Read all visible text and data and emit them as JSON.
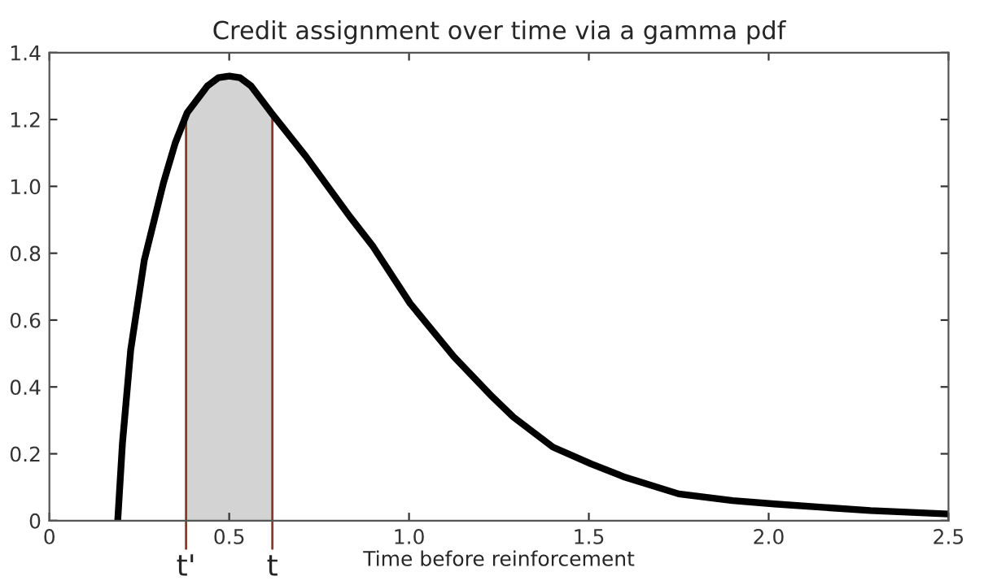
{
  "chart_data": {
    "type": "line",
    "title": "Credit assignment over time via a gamma pdf",
    "xlabel": "Time before reinforcement",
    "series": [
      {
        "color": "#000000",
        "x": [
          0.19,
          0.203,
          0.226,
          0.264,
          0.317,
          0.35,
          0.383,
          0.439,
          0.47,
          0.5,
          0.53,
          0.561,
          0.617,
          0.713,
          0.835,
          0.9,
          1.003,
          1.125,
          1.232,
          1.29,
          1.4,
          1.506,
          1.6,
          1.75,
          1.9,
          2.016,
          2.15,
          2.283,
          2.5
        ],
        "values": [
          0,
          0.23,
          0.51,
          0.78,
          1.01,
          1.13,
          1.22,
          1.3,
          1.325,
          1.33,
          1.325,
          1.3,
          1.22,
          1.09,
          0.91,
          0.82,
          0.65,
          0.49,
          0.37,
          0.31,
          0.22,
          0.17,
          0.13,
          0.08,
          0.06,
          0.05,
          0.04,
          0.03,
          0.02
        ]
      }
    ],
    "bands": [
      {
        "axis": "x",
        "from": 0.38,
        "to": 0.62,
        "color": "#d3d3d3"
      }
    ],
    "ref_lines": [
      {
        "axis": "x",
        "value": 0.38,
        "label": "t'",
        "color": "#8b3a2a"
      },
      {
        "axis": "x",
        "value": 0.62,
        "label": "t",
        "color": "#8b3a2a"
      }
    ],
    "xlim": [
      0,
      2.5
    ],
    "ylim": [
      0,
      1.4
    ],
    "xticks": [
      0,
      0.5,
      {
        "value": 1,
        "label": "1.0"
      },
      1.5,
      {
        "value": 2,
        "label": "2.0"
      },
      2.5
    ],
    "yticks": [
      0,
      0.2,
      0.4,
      0.6,
      0.8,
      {
        "value": 1,
        "label": "1.0"
      },
      1.2,
      1.4
    ],
    "grid": false
  }
}
